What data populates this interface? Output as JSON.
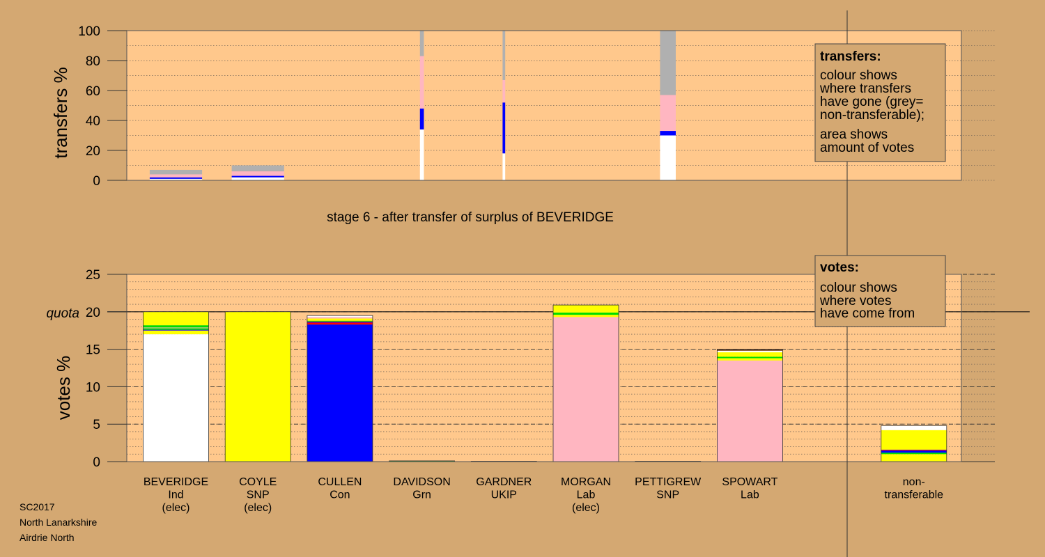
{
  "colors": {
    "background": "#d4a872",
    "plot_area": "#ffc88c",
    "white": "#ffffff",
    "yellow": "#ffff00",
    "blue": "#0000ff",
    "pink": "#ffb6c1",
    "grey": "#b0b0b0",
    "green": "#00dd00",
    "purple": "#800080",
    "red": "#ff0000",
    "brown": "#6b3f1f"
  },
  "footer": [
    "SC2017",
    "North Lanarkshire",
    "Airdrie North"
  ],
  "stage_title": "stage 6 - after transfer of surplus of BEVERIDGE",
  "legend_transfers": {
    "title": "transfers:",
    "lines1": [
      "colour shows",
      "where transfers",
      "have gone (grey=",
      "non-transferable);"
    ],
    "lines2": [
      "area shows",
      "amount of votes"
    ]
  },
  "legend_votes": {
    "title": "votes:",
    "lines": [
      "colour shows",
      "where votes",
      "have come from"
    ]
  },
  "chart_data": [
    {
      "type": "bar",
      "name": "transfers",
      "ylabel": "transfers %",
      "ylim": [
        0,
        100
      ],
      "yticks": [
        0,
        20,
        40,
        60,
        80,
        100
      ],
      "grid": true,
      "bars": [
        {
          "column": 0,
          "width_frac": 0.8,
          "segments": [
            {
              "color": "white",
              "from": 0,
              "to": 1
            },
            {
              "color": "blue",
              "from": 1,
              "to": 2
            },
            {
              "color": "pink",
              "from": 2,
              "to": 4
            },
            {
              "color": "grey",
              "from": 4,
              "to": 7
            }
          ]
        },
        {
          "column": 1,
          "width_frac": 0.8,
          "segments": [
            {
              "color": "white",
              "from": 0,
              "to": 2
            },
            {
              "color": "blue",
              "from": 2,
              "to": 3
            },
            {
              "color": "pink",
              "from": 3,
              "to": 6
            },
            {
              "color": "grey",
              "from": 6,
              "to": 10
            }
          ]
        },
        {
          "column": 3,
          "width_frac": 0.06,
          "segments": [
            {
              "color": "white",
              "from": 0,
              "to": 34
            },
            {
              "color": "blue",
              "from": 34,
              "to": 48
            },
            {
              "color": "pink",
              "from": 48,
              "to": 83
            },
            {
              "color": "grey",
              "from": 83,
              "to": 100
            }
          ]
        },
        {
          "column": 4,
          "width_frac": 0.04,
          "segments": [
            {
              "color": "white",
              "from": 0,
              "to": 18
            },
            {
              "color": "blue",
              "from": 18,
              "to": 52
            },
            {
              "color": "pink",
              "from": 52,
              "to": 67
            },
            {
              "color": "grey",
              "from": 67,
              "to": 100
            }
          ]
        },
        {
          "column": 6,
          "width_frac": 0.24,
          "segments": [
            {
              "color": "white",
              "from": 0,
              "to": 30
            },
            {
              "color": "blue",
              "from": 30,
              "to": 33
            },
            {
              "color": "pink",
              "from": 33,
              "to": 57
            },
            {
              "color": "grey",
              "from": 57,
              "to": 100
            }
          ]
        }
      ]
    },
    {
      "type": "bar",
      "name": "votes",
      "ylabel": "votes %",
      "ylim": [
        0,
        25
      ],
      "yticks": [
        0,
        5,
        10,
        15,
        20,
        25
      ],
      "quota": 20,
      "quota_label": "quota",
      "grid": true,
      "categories": [
        [
          "BEVERIDGE",
          "Ind",
          "(elec)"
        ],
        [
          "COYLE",
          "SNP",
          "(elec)"
        ],
        [
          "CULLEN",
          "Con"
        ],
        [
          "DAVIDSON",
          "Grn"
        ],
        [
          "GARDNER",
          "UKIP"
        ],
        [
          "MORGAN",
          "Lab",
          "(elec)"
        ],
        [
          "PETTIGREW",
          "SNP"
        ],
        [
          "SPOWART",
          "Lab"
        ],
        [],
        [
          "non-",
          "transferable"
        ]
      ],
      "bars": [
        {
          "column": 0,
          "total": 20.0,
          "segments": [
            {
              "color": "white",
              "from": 0,
              "to": 17.0
            },
            {
              "color": "yellow",
              "from": 17.0,
              "to": 17.5
            },
            {
              "color": "blue",
              "from": 17.5,
              "to": 17.6
            },
            {
              "color": "green",
              "from": 17.6,
              "to": 17.8
            },
            {
              "color": "pink",
              "from": 17.8,
              "to": 17.9
            },
            {
              "color": "green",
              "from": 17.9,
              "to": 18.2
            },
            {
              "color": "yellow",
              "from": 18.2,
              "to": 20.0
            }
          ]
        },
        {
          "column": 1,
          "total": 20.0,
          "segments": [
            {
              "color": "yellow",
              "from": 0,
              "to": 20.0
            }
          ]
        },
        {
          "column": 2,
          "total": 19.5,
          "segments": [
            {
              "color": "blue",
              "from": 0,
              "to": 18.3
            },
            {
              "color": "red",
              "from": 18.3,
              "to": 18.5
            },
            {
              "color": "purple",
              "from": 18.5,
              "to": 18.7
            },
            {
              "color": "green",
              "from": 18.7,
              "to": 18.8
            },
            {
              "color": "yellow",
              "from": 18.8,
              "to": 19.1
            },
            {
              "color": "pink",
              "from": 19.1,
              "to": 19.3
            },
            {
              "color": "white",
              "from": 19.3,
              "to": 19.5
            }
          ]
        },
        {
          "column": 3,
          "total": 0.1,
          "segments": [
            {
              "color": "green",
              "from": 0,
              "to": 0.1
            }
          ]
        },
        {
          "column": 4,
          "total": 0.05,
          "segments": [
            {
              "color": "purple",
              "from": 0,
              "to": 0.05
            }
          ]
        },
        {
          "column": 5,
          "total": 20.9,
          "segments": [
            {
              "color": "pink",
              "from": 0,
              "to": 19.3
            },
            {
              "color": "yellow",
              "from": 19.3,
              "to": 19.6
            },
            {
              "color": "green",
              "from": 19.6,
              "to": 19.9
            },
            {
              "color": "yellow",
              "from": 19.9,
              "to": 20.9
            }
          ]
        },
        {
          "column": 6,
          "total": 0.05,
          "segments": [
            {
              "color": "yellow",
              "from": 0,
              "to": 0.05
            }
          ]
        },
        {
          "column": 7,
          "total": 15.0,
          "segments": [
            {
              "color": "pink",
              "from": 0,
              "to": 13.5
            },
            {
              "color": "yellow",
              "from": 13.5,
              "to": 13.8
            },
            {
              "color": "green",
              "from": 13.8,
              "to": 14.0
            },
            {
              "color": "yellow",
              "from": 14.0,
              "to": 14.6
            },
            {
              "color": "white",
              "from": 14.6,
              "to": 14.8
            },
            {
              "color": "brown",
              "from": 14.8,
              "to": 15.0
            }
          ]
        },
        {
          "column": 9,
          "total": 4.8,
          "segments": [
            {
              "color": "yellow",
              "from": 0,
              "to": 1.0
            },
            {
              "color": "green",
              "from": 1.0,
              "to": 1.2
            },
            {
              "color": "blue",
              "from": 1.2,
              "to": 1.4
            },
            {
              "color": "purple",
              "from": 1.4,
              "to": 1.6
            },
            {
              "color": "yellow",
              "from": 1.6,
              "to": 4.2
            },
            {
              "color": "white",
              "from": 4.2,
              "to": 4.8
            }
          ]
        }
      ]
    }
  ]
}
